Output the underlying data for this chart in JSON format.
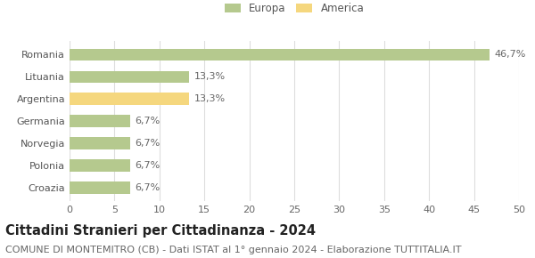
{
  "categories": [
    "Romania",
    "Lituania",
    "Argentina",
    "Germania",
    "Norvegia",
    "Polonia",
    "Croazia"
  ],
  "values": [
    46.7,
    13.3,
    13.3,
    6.7,
    6.7,
    6.7,
    6.7
  ],
  "labels": [
    "46,7%",
    "13,3%",
    "13,3%",
    "6,7%",
    "6,7%",
    "6,7%",
    "6,7%"
  ],
  "bar_colors": [
    "#b5c98e",
    "#b5c98e",
    "#f5d77e",
    "#b5c98e",
    "#b5c98e",
    "#b5c98e",
    "#b5c98e"
  ],
  "legend_items": [
    {
      "label": "Europa",
      "color": "#b5c98e"
    },
    {
      "label": "America",
      "color": "#f5d77e"
    }
  ],
  "xlim": [
    0,
    50
  ],
  "xticks": [
    0,
    5,
    10,
    15,
    20,
    25,
    30,
    35,
    40,
    45,
    50
  ],
  "title": "Cittadini Stranieri per Cittadinanza - 2024",
  "subtitle": "COMUNE DI MONTEMITRO (CB) - Dati ISTAT al 1° gennaio 2024 - Elaborazione TUTTITALIA.IT",
  "title_fontsize": 10.5,
  "subtitle_fontsize": 8,
  "label_fontsize": 8,
  "tick_fontsize": 8,
  "bar_height": 0.55,
  "background_color": "#ffffff",
  "grid_color": "#dddddd"
}
